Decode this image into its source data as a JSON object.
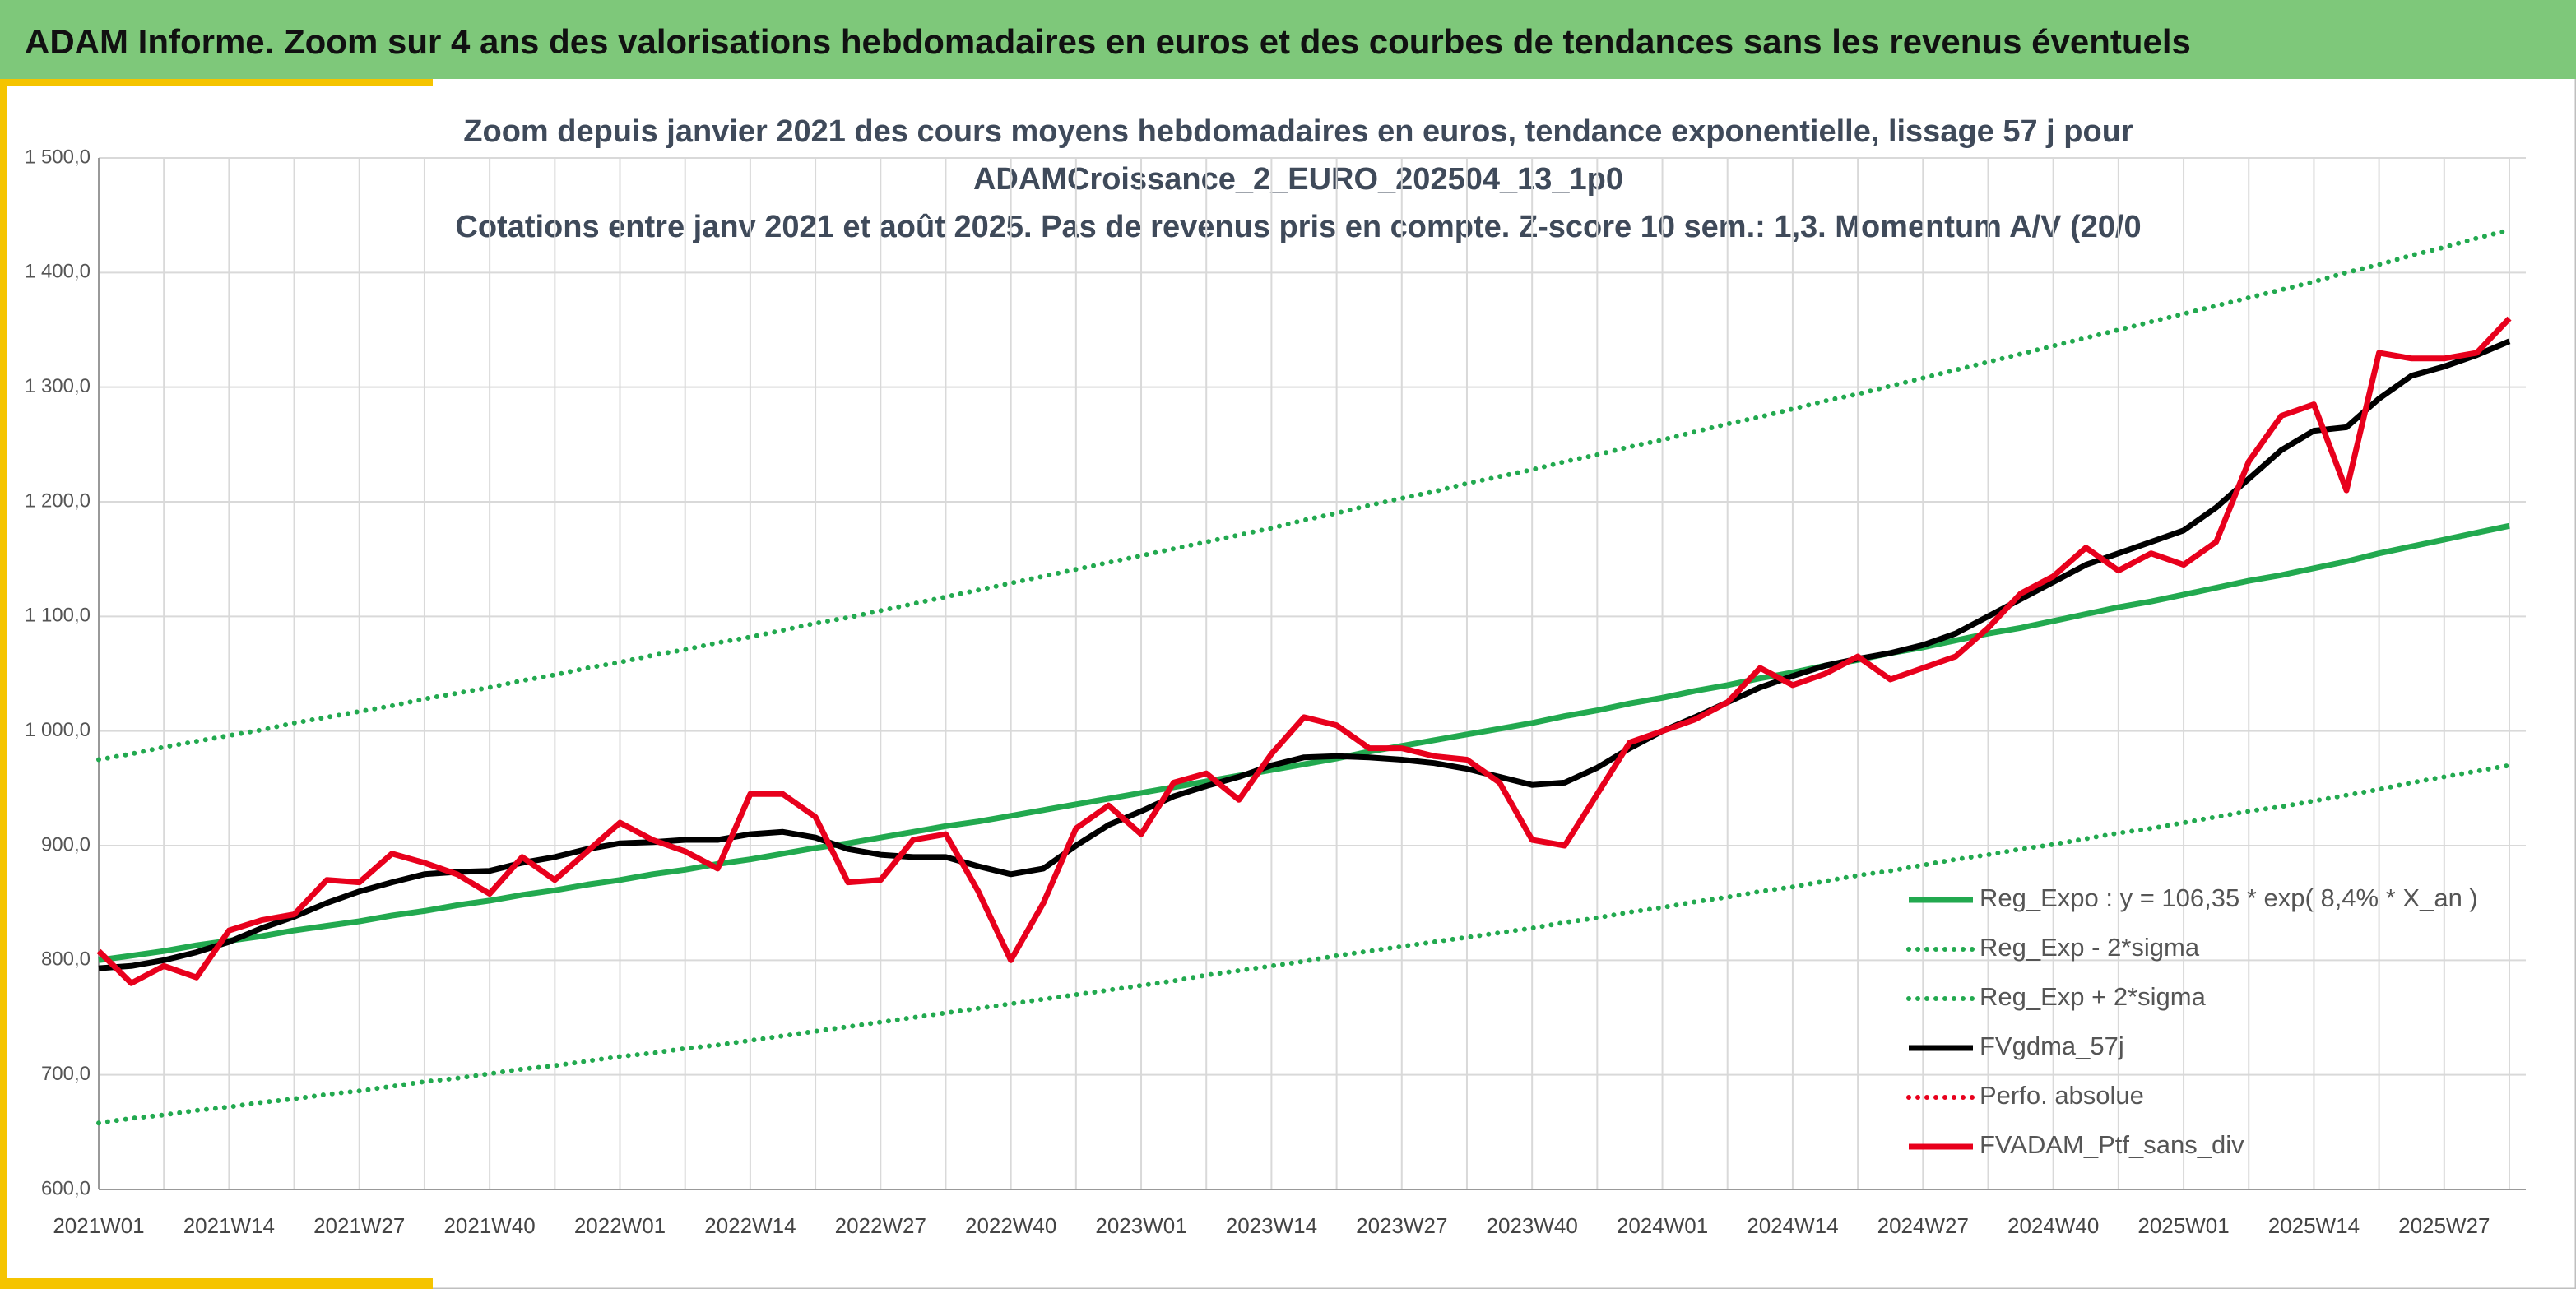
{
  "page_title": "ADAM Informe. Zoom sur 4 ans des valorisations hebdomadaires en euros et des courbes de tendances sans les revenus éventuels",
  "chart_data": {
    "type": "line",
    "title": [
      "Zoom depuis janvier 2021 des cours moyens hebdomadaires en euros, tendance exponentielle, lissage 57 j pour",
      "ADAMCroissance_2_EURO_202504_13_1p0",
      "Cotations entre janv 2021 et août 2025. Pas de revenus pris en compte. Z-score 10 sem.: 1,3. Momentum A/V (20/0"
    ],
    "categories": [
      "2021W01",
      null,
      null,
      null,
      "2021W14",
      null,
      null,
      null,
      "2021W27",
      null,
      null,
      null,
      "2021W40",
      null,
      null,
      null,
      "2022W01",
      null,
      null,
      null,
      "2022W14",
      null,
      null,
      null,
      "2022W27",
      null,
      null,
      null,
      "2022W40",
      null,
      null,
      null,
      "2023W01",
      null,
      null,
      null,
      "2023W14",
      null,
      null,
      null,
      "2023W27",
      null,
      null,
      null,
      "2023W40",
      null,
      null,
      null,
      "2024W01",
      null,
      null,
      null,
      "2024W14",
      null,
      null,
      null,
      "2024W27",
      null,
      null,
      null,
      "2024W40",
      null,
      null,
      null,
      "2025W01",
      null,
      null,
      null,
      "2025W14",
      null,
      null,
      null,
      "2025W27",
      null,
      null
    ],
    "ylim": [
      600,
      1500
    ],
    "yticks": [
      {
        "value": 600,
        "label": "600,0"
      },
      {
        "value": 700,
        "label": "700,0"
      },
      {
        "value": 800,
        "label": "800,0"
      },
      {
        "value": 900,
        "label": "900,0"
      },
      {
        "value": 1000,
        "label": "1 000,0"
      },
      {
        "value": 1100,
        "label": "1 100,0"
      },
      {
        "value": 1200,
        "label": "1 200,0"
      },
      {
        "value": 1300,
        "label": "1 300,0"
      },
      {
        "value": 1400,
        "label": "1 400,0"
      },
      {
        "value": 1500,
        "label": "1 500,0"
      }
    ],
    "grid": true,
    "legend": "right",
    "series": [
      {
        "name": "Reg_Expo : y = 106,35 * exp( 8,4% *  X_an )",
        "color": "#22a94f",
        "line_style": "solid",
        "values": [
          800,
          804,
          808,
          813,
          817,
          821,
          826,
          830,
          834,
          839,
          843,
          848,
          852,
          857,
          861,
          866,
          870,
          875,
          879,
          884,
          888,
          893,
          898,
          902,
          907,
          912,
          917,
          921,
          926,
          931,
          936,
          941,
          946,
          951,
          956,
          961,
          966,
          971,
          976,
          982,
          987,
          992,
          997,
          1002,
          1007,
          1013,
          1018,
          1024,
          1029,
          1035,
          1040,
          1046,
          1051,
          1057,
          1062,
          1068,
          1073,
          1079,
          1085,
          1090,
          1096,
          1102,
          1108,
          1113,
          1119,
          1125,
          1131,
          1136,
          1142,
          1148,
          1155,
          1161,
          1167,
          1173,
          1179
        ]
      },
      {
        "name": "Reg_Exp - 2*sigma",
        "color": "#22a94f",
        "line_style": "dotted",
        "values": [
          658,
          662,
          665,
          669,
          672,
          676,
          679,
          683,
          686,
          690,
          694,
          697,
          701,
          705,
          708,
          712,
          716,
          719,
          723,
          726,
          730,
          734,
          738,
          742,
          746,
          750,
          754,
          758,
          762,
          766,
          770,
          774,
          778,
          782,
          787,
          791,
          795,
          799,
          804,
          808,
          812,
          816,
          820,
          824,
          828,
          833,
          837,
          842,
          846,
          851,
          855,
          860,
          864,
          869,
          874,
          878,
          883,
          888,
          892,
          897,
          901,
          906,
          911,
          915,
          920,
          925,
          930,
          934,
          939,
          944,
          949,
          955,
          960,
          965,
          970
        ]
      },
      {
        "name": "Reg_Exp + 2*sigma",
        "color": "#22a94f",
        "line_style": "dotted",
        "values": [
          975,
          980,
          986,
          991,
          996,
          1001,
          1007,
          1012,
          1017,
          1022,
          1028,
          1033,
          1038,
          1044,
          1049,
          1055,
          1060,
          1066,
          1071,
          1077,
          1082,
          1088,
          1094,
          1099,
          1105,
          1111,
          1117,
          1123,
          1129,
          1135,
          1141,
          1147,
          1153,
          1159,
          1165,
          1171,
          1177,
          1184,
          1190,
          1197,
          1203,
          1209,
          1216,
          1222,
          1228,
          1235,
          1241,
          1248,
          1254,
          1261,
          1268,
          1274,
          1281,
          1288,
          1294,
          1301,
          1308,
          1315,
          1322,
          1329,
          1336,
          1343,
          1350,
          1357,
          1364,
          1371,
          1378,
          1385,
          1392,
          1400,
          1407,
          1415,
          1422,
          1430,
          1437
        ]
      },
      {
        "name": "FVgdma_57j",
        "color": "#000000",
        "line_style": "solid",
        "values": [
          793,
          795,
          800,
          807,
          816,
          828,
          838,
          850,
          860,
          868,
          875,
          877,
          878,
          885,
          890,
          897,
          902,
          903,
          905,
          905,
          910,
          912,
          907,
          897,
          892,
          890,
          890,
          882,
          875,
          880,
          900,
          918,
          930,
          943,
          952,
          960,
          970,
          977,
          978,
          977,
          975,
          972,
          967,
          960,
          953,
          955,
          968,
          985,
          1000,
          1012,
          1025,
          1038,
          1048,
          1057,
          1063,
          1068,
          1075,
          1085,
          1100,
          1115,
          1130,
          1145,
          1155,
          1165,
          1175,
          1195,
          1220,
          1245,
          1262,
          1265,
          1290,
          1310,
          1318,
          1328,
          1340
        ]
      },
      {
        "name": "Perfo. absolue",
        "color": "#e8001c",
        "line_style": "dotted"
      },
      {
        "name": "FVADAM_Ptf_sans_div",
        "color": "#e8001c",
        "line_style": "solid",
        "values": [
          808,
          780,
          795,
          785,
          826,
          835,
          840,
          870,
          868,
          893,
          885,
          875,
          858,
          890,
          870,
          895,
          920,
          905,
          895,
          880,
          945,
          945,
          925,
          868,
          870,
          905,
          910,
          860,
          800,
          850,
          915,
          935,
          910,
          955,
          963,
          940,
          980,
          1012,
          1005,
          985,
          985,
          978,
          975,
          955,
          905,
          900,
          945,
          990,
          1000,
          1010,
          1025,
          1055,
          1040,
          1050,
          1065,
          1045,
          1055,
          1065,
          1090,
          1120,
          1135,
          1160,
          1140,
          1155,
          1145,
          1165,
          1235,
          1275,
          1285,
          1210,
          1330,
          1325,
          1325,
          1330,
          1360
        ]
      }
    ]
  }
}
